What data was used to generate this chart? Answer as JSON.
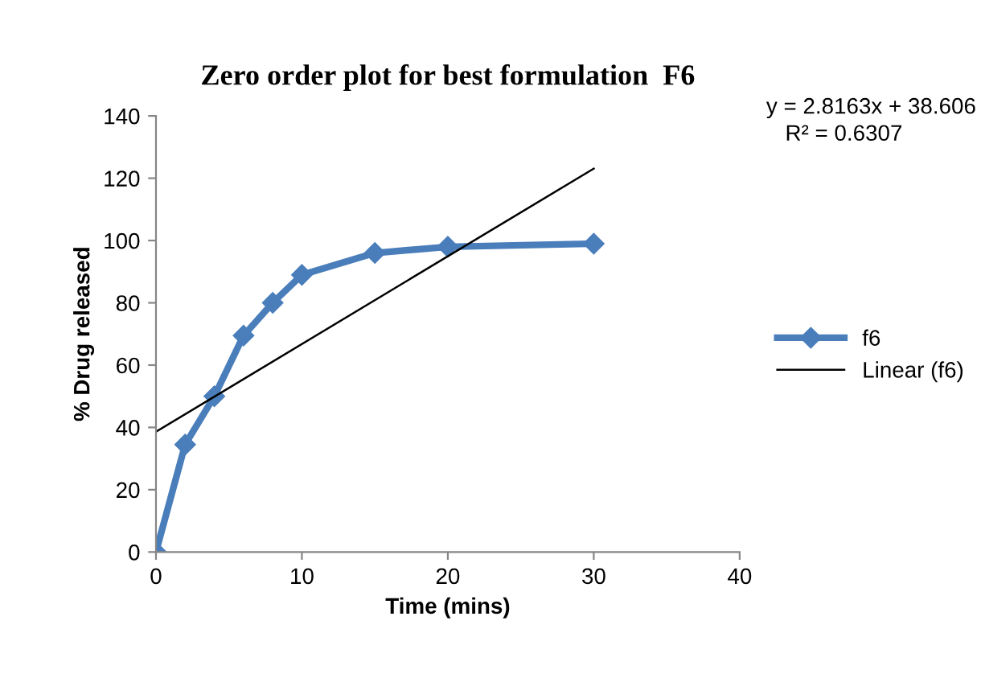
{
  "chart_data": {
    "type": "line",
    "title": "Zero order plot for best formulation  F6",
    "xlabel": "Time (mins)",
    "ylabel": "% Drug released",
    "annotations": [
      "y = 2.8163x + 38.606",
      "R² = 0.6307"
    ],
    "series": [
      {
        "name": "f6",
        "color": "#4a7ebb",
        "marker": "diamond",
        "x": [
          0,
          2,
          4,
          6,
          8,
          10,
          15,
          20,
          30
        ],
        "values": [
          0,
          34.5,
          50,
          69.5,
          80,
          89,
          96,
          98,
          99
        ]
      },
      {
        "name": "Linear (f6)",
        "color": "#000000",
        "marker": "none",
        "x": [
          0,
          30
        ],
        "values": [
          38.606,
          123.095
        ]
      }
    ],
    "xlim": [
      0,
      40
    ],
    "xticks": [
      0,
      10,
      20,
      30,
      40
    ],
    "ylim": [
      0,
      140
    ],
    "yticks": [
      0,
      20,
      40,
      60,
      80,
      100,
      120,
      140
    ],
    "grid": false,
    "legend": "right"
  }
}
